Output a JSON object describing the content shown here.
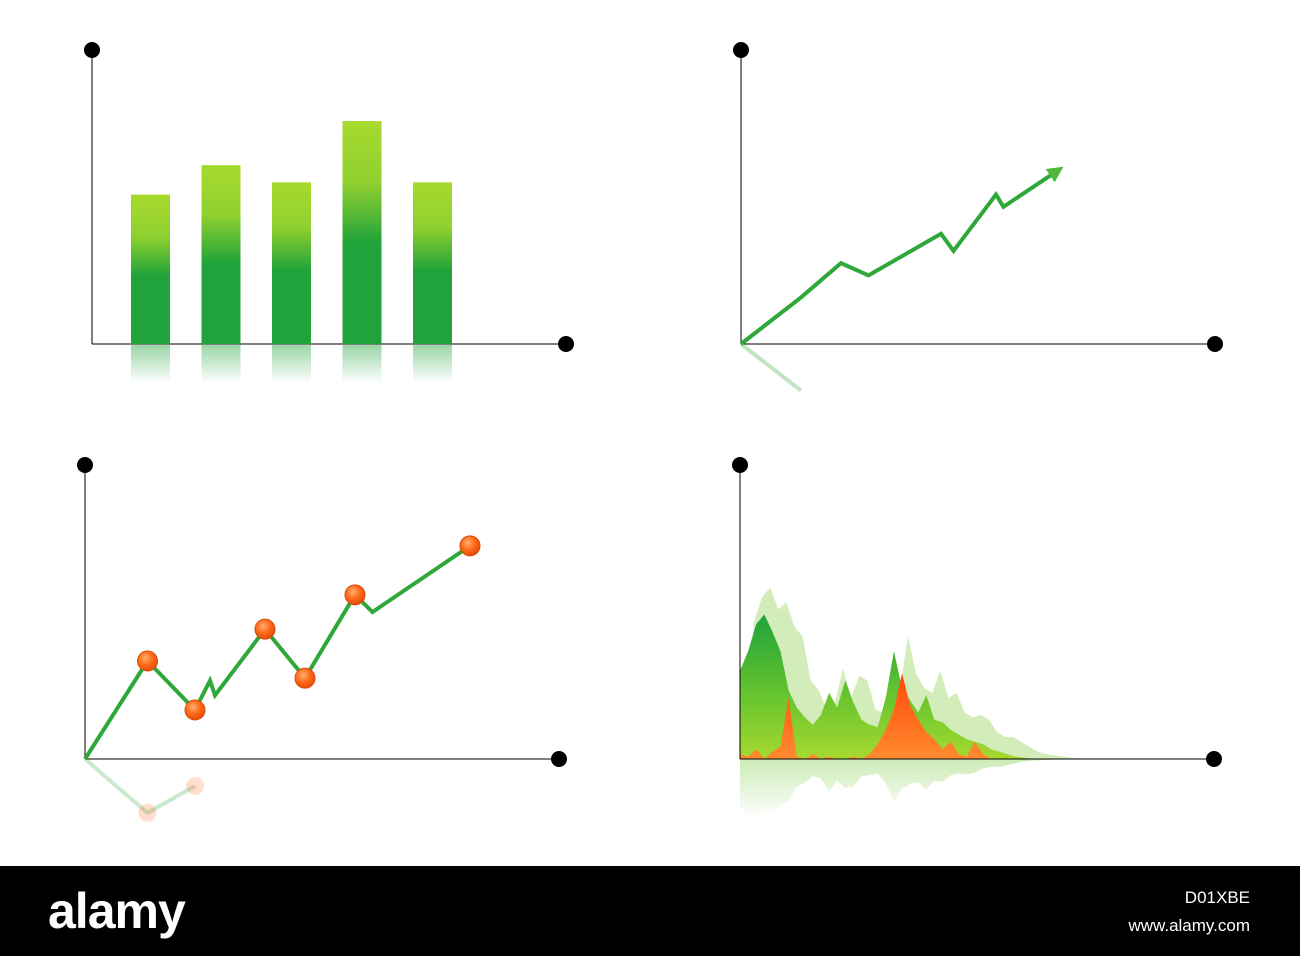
{
  "colors": {
    "green_dark": "#1fa33a",
    "green_light": "#a5d930",
    "green_line": "#2fa83a",
    "orange": "#ff5a10",
    "orange_light": "#ff8a40",
    "axis": "#000000",
    "grid": "#555555"
  },
  "footer": {
    "logo": "alamy",
    "image_id": "D01XBE",
    "url": "www.alamy.com"
  },
  "chart_data": [
    {
      "type": "bar",
      "categories": [
        "",
        "",
        "",
        "",
        ""
      ],
      "values": [
        3.05,
        3.65,
        3.3,
        4.55,
        3.3
      ],
      "ylim": [
        0,
        5
      ],
      "grid": true,
      "title": "",
      "xlabel": "",
      "ylabel": ""
    },
    {
      "type": "line",
      "x": [
        0,
        1.2,
        2.0,
        2.55,
        4.0,
        4.25,
        5.1,
        5.25
      ],
      "y": [
        0,
        0.95,
        1.65,
        1.4,
        2.25,
        1.9,
        3.05,
        2.8
      ],
      "arrow_end": [
        6.35,
        3.55
      ],
      "xlim": [
        0,
        9
      ],
      "ylim": [
        0,
        5
      ],
      "grid": true,
      "title": "",
      "xlabel": "",
      "ylabel": ""
    },
    {
      "type": "line",
      "x": [
        0,
        1.25,
        2.2,
        2.5,
        2.6,
        3.6,
        4.4,
        5.4,
        5.75,
        7.7
      ],
      "y": [
        0,
        2.0,
        1.0,
        1.6,
        1.3,
        2.65,
        1.65,
        3.35,
        3.0,
        4.35
      ],
      "markers": [
        1,
        2,
        5,
        6,
        7,
        9
      ],
      "xlim": [
        0,
        9
      ],
      "ylim": [
        0,
        5
      ],
      "grid": true,
      "title": "",
      "xlabel": "",
      "ylabel": ""
    },
    {
      "type": "area",
      "x": [
        0,
        0.15,
        0.3,
        0.45,
        0.6,
        0.75,
        0.9,
        1.05,
        1.2,
        1.35,
        1.5,
        1.65,
        1.8,
        1.95,
        2.1,
        2.25,
        2.4,
        2.55,
        2.7,
        2.85,
        3.0,
        3.15,
        3.3,
        3.45,
        3.6,
        3.75,
        3.9,
        4.05,
        4.2,
        4.35,
        4.5,
        4.65,
        4.8,
        4.95,
        5.1,
        5.25,
        5.4,
        5.55,
        5.7,
        5.85,
        6.0,
        6.15
      ],
      "series": [
        {
          "values": [
            2.8,
            3.3,
            3.5,
            3.05,
            3.2,
            2.7,
            2.5,
            1.6,
            1.4,
            1.0,
            1.15,
            1.85,
            1.25,
            1.7,
            1.6,
            1.0,
            0.95,
            0.85,
            1.4,
            2.5,
            1.75,
            1.45,
            1.35,
            1.8,
            1.25,
            1.35,
            0.95,
            0.85,
            0.9,
            0.8,
            0.55,
            0.45,
            0.45,
            0.35,
            0.25,
            0.15,
            0.1,
            0.08,
            0.05,
            0.03,
            0.02,
            0.0
          ]
        },
        {
          "values": [
            1.8,
            2.2,
            2.75,
            2.95,
            2.6,
            2.2,
            1.4,
            1.05,
            0.85,
            0.7,
            0.9,
            1.35,
            1.05,
            1.6,
            1.15,
            0.8,
            0.7,
            0.65,
            1.25,
            2.2,
            1.45,
            1.2,
            0.95,
            1.3,
            0.8,
            0.75,
            0.6,
            0.5,
            0.4,
            0.35,
            0.3,
            0.2,
            0.15,
            0.1,
            0.05,
            0.03,
            0.0,
            0.0,
            0.0,
            0.0,
            0.0,
            0.0
          ]
        },
        {
          "values": [
            0.1,
            0.05,
            0.2,
            0.0,
            0.15,
            0.25,
            1.25,
            0.05,
            0.0,
            0.1,
            0.0,
            0.05,
            0.0,
            0.0,
            0.05,
            0.0,
            0.1,
            0.3,
            0.6,
            1.0,
            1.75,
            1.1,
            0.8,
            0.55,
            0.4,
            0.2,
            0.35,
            0.1,
            0.05,
            0.35,
            0.1,
            0.0,
            0.0,
            0.0,
            0.0,
            0.0,
            0.0,
            0.0,
            0.0,
            0.0,
            0.0,
            0.0
          ]
        }
      ],
      "xlim": [
        0,
        9
      ],
      "ylim": [
        0,
        5
      ],
      "grid": true,
      "title": "",
      "xlabel": "",
      "ylabel": ""
    }
  ]
}
